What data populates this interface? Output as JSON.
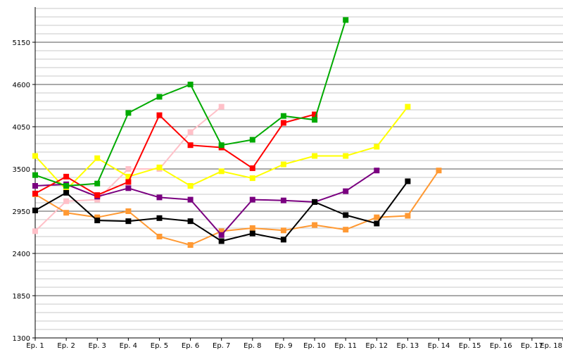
{
  "chart_data": {
    "type": "line",
    "title": "",
    "xlabel": "",
    "ylabel": "",
    "grid": true,
    "legend": "none",
    "categories": [
      "Ep. 1",
      "Ep. 2",
      "Ep. 3",
      "Ep. 4",
      "Ep. 5",
      "Ep. 6",
      "Ep. 7",
      "Ep. 8",
      "Ep. 9",
      "Ep. 10",
      "Ep. 11",
      "Ep. 12",
      "Ep. 13",
      "Ep. 14",
      "Ep. 15",
      "Ep. 16",
      "Ep. 17",
      "Ep. 18"
    ],
    "ylim": [
      1300,
      5700
    ],
    "yticks": [
      1300,
      1850,
      2400,
      2950,
      3500,
      4050,
      4600,
      5150
    ],
    "series": [
      {
        "color": "#ffc0c8",
        "values": [
          2690,
          3080,
          3100,
          3500,
          3500,
          3980,
          4310,
          null,
          null,
          null,
          null,
          null,
          null,
          null,
          null,
          null,
          null,
          null
        ]
      },
      {
        "color": "#ff9933",
        "values": [
          3170,
          2930,
          2870,
          2950,
          2620,
          2510,
          2690,
          2730,
          2700,
          2770,
          2710,
          2870,
          2890,
          3480,
          null,
          null,
          null,
          null
        ]
      },
      {
        "color": "#ffff00",
        "values": [
          3670,
          3230,
          3640,
          3400,
          3520,
          3280,
          3470,
          3380,
          3560,
          3670,
          3670,
          3790,
          4310,
          null,
          null,
          null,
          null,
          null
        ]
      },
      {
        "color": "#7a0080",
        "values": [
          3280,
          3300,
          3140,
          3250,
          3130,
          3100,
          2640,
          3100,
          3090,
          3070,
          3210,
          3480,
          null,
          null,
          null,
          null,
          null,
          null
        ]
      },
      {
        "color": "#000000",
        "values": [
          2960,
          3190,
          2830,
          2820,
          2860,
          2820,
          2560,
          2660,
          2580,
          3070,
          2900,
          2790,
          3340,
          null,
          null,
          null,
          null,
          null
        ]
      },
      {
        "color": "#ff0000",
        "values": [
          3180,
          3400,
          3160,
          3330,
          4200,
          3810,
          3780,
          3510,
          4100,
          4210,
          null,
          null,
          null,
          null,
          null,
          null,
          null,
          null
        ]
      },
      {
        "color": "#00aa00",
        "values": [
          3420,
          3280,
          3310,
          4230,
          4440,
          4600,
          3810,
          3880,
          4190,
          4140,
          5440,
          null,
          null,
          null,
          null,
          null,
          null,
          null
        ]
      }
    ]
  }
}
